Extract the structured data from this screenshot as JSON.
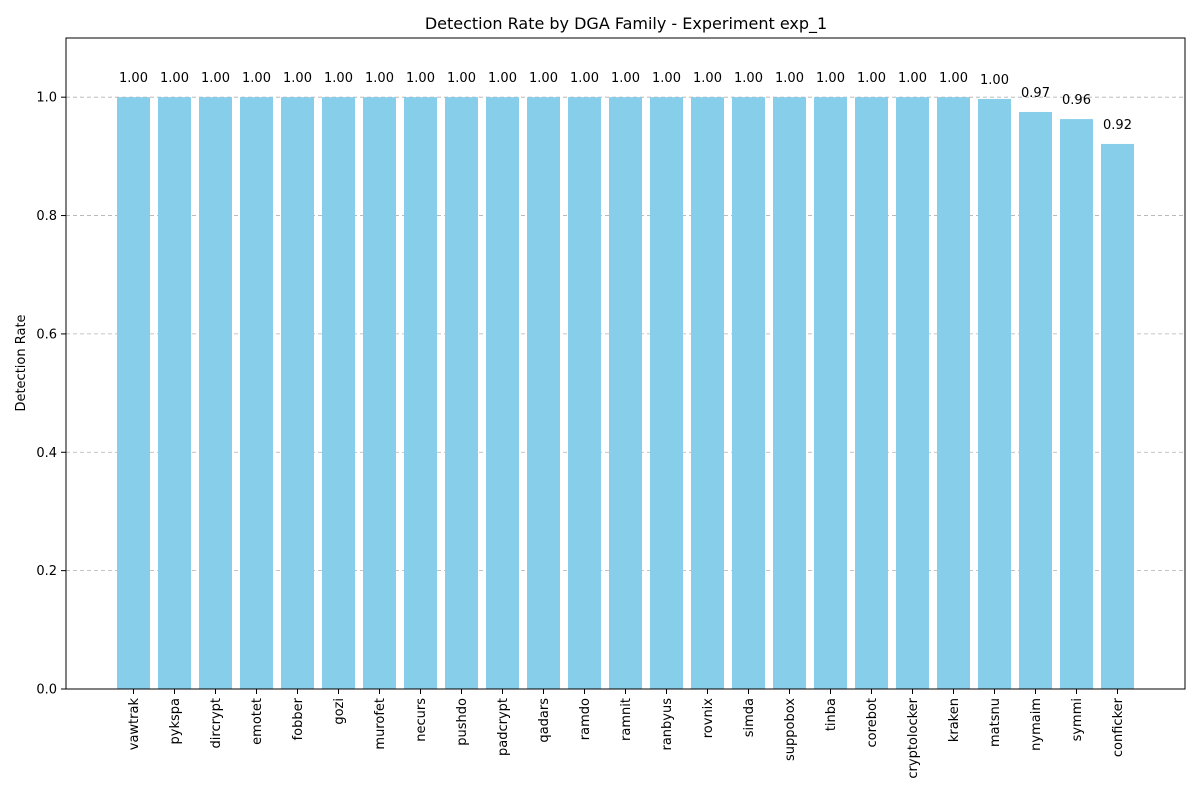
{
  "chart_data": {
    "type": "bar",
    "title": "Detection Rate by DGA Family - Experiment exp_1",
    "xlabel": "",
    "ylabel": "Detection Rate",
    "ylim": [
      0,
      1.1
    ],
    "yticks": [
      0.0,
      0.2,
      0.4,
      0.6,
      0.8,
      1.0
    ],
    "ytick_labels": [
      "0.0",
      "0.2",
      "0.4",
      "0.6",
      "0.8",
      "1.0"
    ],
    "grid": "horizontal dashed",
    "bar_color": "#87CEEB",
    "categories": [
      "vawtrak",
      "pykspa",
      "dircrypt",
      "emotet",
      "fobber",
      "gozi",
      "murofet",
      "necurs",
      "pushdo",
      "padcrypt",
      "qadars",
      "ramdo",
      "ramnit",
      "ranbyus",
      "rovnix",
      "simda",
      "suppobox",
      "tinba",
      "corebot",
      "cryptolocker",
      "kraken",
      "matsnu",
      "nymaim",
      "symmi",
      "conficker"
    ],
    "values": [
      1.0,
      1.0,
      1.0,
      1.0,
      1.0,
      1.0,
      1.0,
      1.0,
      1.0,
      1.0,
      1.0,
      1.0,
      1.0,
      1.0,
      1.0,
      1.0,
      1.0,
      1.0,
      1.0,
      1.0,
      1.0,
      0.997,
      0.975,
      0.963,
      0.921
    ],
    "value_labels": [
      "1.00",
      "1.00",
      "1.00",
      "1.00",
      "1.00",
      "1.00",
      "1.00",
      "1.00",
      "1.00",
      "1.00",
      "1.00",
      "1.00",
      "1.00",
      "1.00",
      "1.00",
      "1.00",
      "1.00",
      "1.00",
      "1.00",
      "1.00",
      "1.00",
      "1.00",
      "0.97",
      "0.96",
      "0.92"
    ]
  }
}
